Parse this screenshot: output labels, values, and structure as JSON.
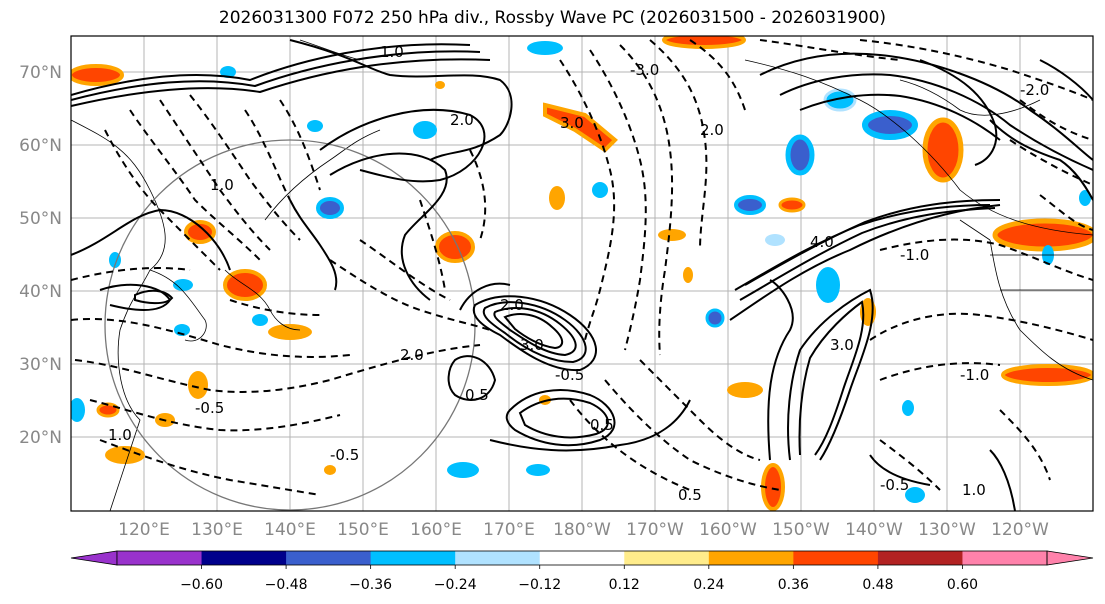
{
  "title": "2026031300 F072 250 hPa div., Rossby Wave PC (2026031500 - 2026031900)",
  "lat_labels": [
    "70°N",
    "60°N",
    "50°N",
    "40°N",
    "30°N",
    "20°N"
  ],
  "lon_labels": [
    "120°E",
    "130°E",
    "140°E",
    "150°E",
    "160°E",
    "170°E",
    "180°W",
    "170°W",
    "160°W",
    "150°W",
    "140°W",
    "130°W",
    "120°W"
  ],
  "colorbar": {
    "ticks": [
      "−0.60",
      "−0.48",
      "−0.36",
      "−0.24",
      "−0.12",
      "0.12",
      "0.24",
      "0.36",
      "0.48",
      "0.60"
    ],
    "colors": [
      "#9932cc",
      "#00008b",
      "#3a5fcd",
      "#00bfff",
      "#b0e2ff",
      "#ffffff",
      "#ffec8b",
      "#ffa500",
      "#ff4500",
      "#b22222",
      "#ff82ab"
    ]
  },
  "contour_labels": [
    "1.0",
    "2.0",
    "3.0",
    "4.0",
    "2.0",
    "3.0",
    "0.5",
    "-0.5",
    "-0.5",
    "-1.0",
    "1.0",
    "0.5",
    "2.0",
    "3.0",
    "-2.0",
    "-3.0",
    "-1.0",
    "0.5",
    "-0.5",
    "1.0",
    "2.0",
    "-0.5",
    "1.0"
  ]
}
